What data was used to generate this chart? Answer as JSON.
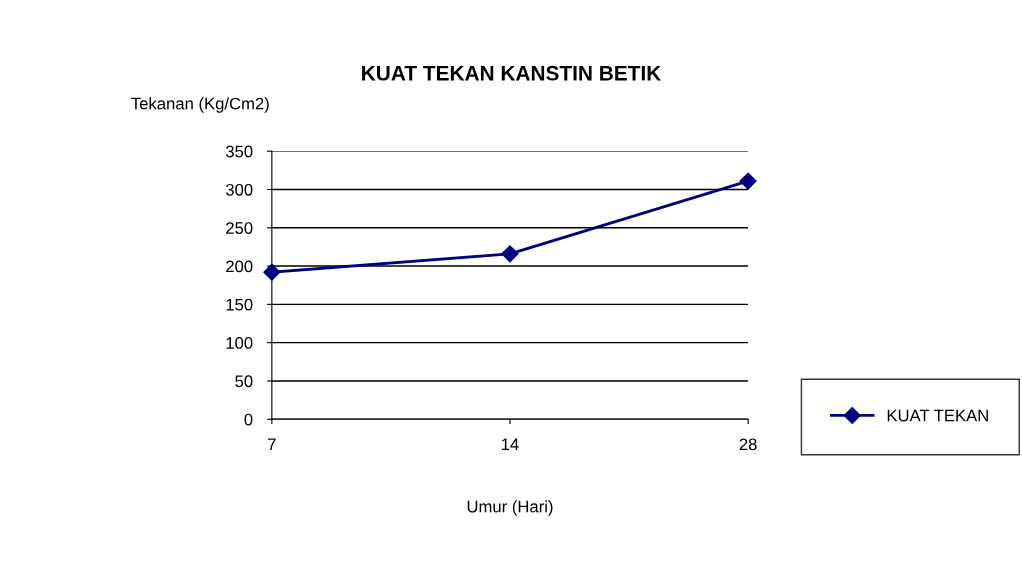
{
  "chart_data": {
    "type": "line",
    "title": "KUAT TEKAN KANSTIN BETIK",
    "xlabel": "Umur (Hari)",
    "ylabel": "Tekanan (Kg/Cm2)",
    "categories": [
      "7",
      "14",
      "28"
    ],
    "series": [
      {
        "name": "KUAT TEKAN",
        "color": "#000080",
        "values": [
          192,
          216,
          311
        ]
      }
    ],
    "ylim": [
      0,
      350
    ],
    "yticks": [
      0,
      50,
      100,
      150,
      200,
      250,
      300,
      350
    ],
    "grid": "y",
    "legend": "right",
    "marker": "diamond",
    "line_style": "solid"
  }
}
